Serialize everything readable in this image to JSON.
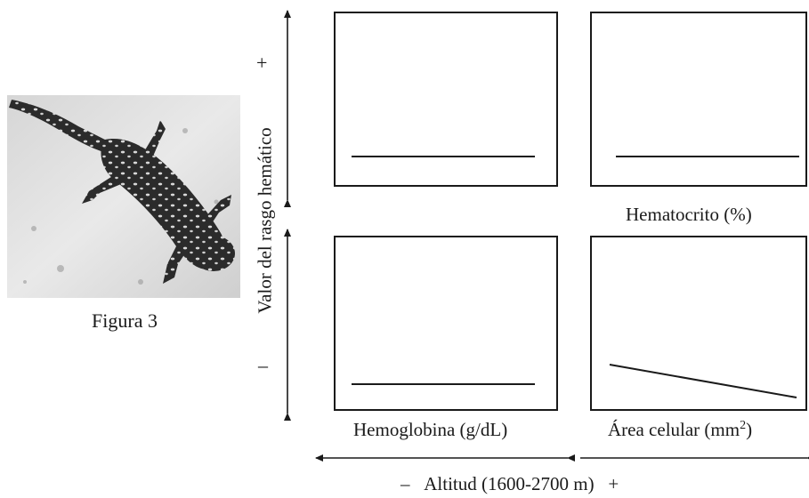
{
  "figure": {
    "caption": "Figura 3",
    "photo": {
      "subject": "salamander-photo"
    }
  },
  "y_axis": {
    "label": "Valor del rasgo hemático",
    "plus": "+",
    "minus": "–"
  },
  "x_axis": {
    "minus": "–",
    "label": "Altitud (1600-2700 m)",
    "plus": "+"
  },
  "panels": {
    "top_right_label": "Hematocrito (%)",
    "bottom_left_label": "Hemoglobina (g/dL)",
    "bottom_right_label_main": "Área celular (mm",
    "bottom_right_label_sup": "2",
    "bottom_right_label_end": ")"
  },
  "chart_data": [
    {
      "type": "line",
      "title": "",
      "trend": "flat"
    },
    {
      "type": "line",
      "title": "Hematocrito (%)",
      "trend": "flat"
    },
    {
      "type": "line",
      "title": "Hemoglobina (g/dL)",
      "trend": "flat"
    },
    {
      "type": "line",
      "title": "Área celular (mm2)",
      "trend": "decreasing"
    }
  ],
  "colors": {
    "ink": "#1a1a1a"
  }
}
